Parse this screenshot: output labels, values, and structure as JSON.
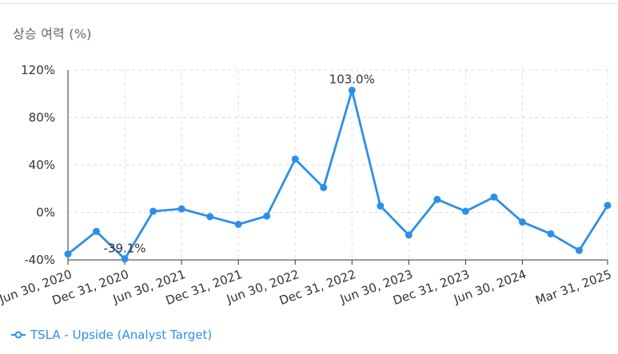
{
  "title": "상승 여력 (%)",
  "colors": {
    "series": "#2e8fe8",
    "grid": "#dddddd",
    "axis": "#333333",
    "text": "#333333"
  },
  "legend": {
    "position": "bottom-left",
    "label": "TSLA - Upside (Analyst Target)"
  },
  "chart_data": {
    "type": "line",
    "title": "상승 여력 (%)",
    "xlabel": "",
    "ylabel": "",
    "ylim": [
      -40,
      120
    ],
    "yticks": [
      "-40%",
      "0%",
      "40%",
      "80%",
      "120%"
    ],
    "ytick_values": [
      -40,
      0,
      40,
      80,
      120
    ],
    "grid": true,
    "x_tick_labels": [
      "Jun 30, 2020",
      "Dec 31, 2020",
      "Jun 30, 2021",
      "Dec 31, 2021",
      "Jun 30, 2022",
      "Dec 31, 2022",
      "Jun 30, 2023",
      "Dec 31, 2023",
      "Jun 30, 2024",
      "Mar 31, 2025"
    ],
    "x": [
      "Jun 30, 2020",
      "Sep 30, 2020",
      "Dec 31, 2020",
      "Mar 31, 2021",
      "Jun 30, 2021",
      "Sep 30, 2021",
      "Dec 31, 2021",
      "Mar 31, 2022",
      "Jun 30, 2022",
      "Sep 30, 2022",
      "Dec 31, 2022",
      "Mar 31, 2023",
      "Jun 30, 2023",
      "Sep 30, 2023",
      "Dec 31, 2023",
      "Mar 31, 2024",
      "Jun 30, 2024",
      "Sep 30, 2024",
      "Dec 31, 2024",
      "Mar 31, 2025"
    ],
    "series": [
      {
        "name": "TSLA - Upside (Analyst Target)",
        "values": [
          -35,
          -16,
          -39.1,
          1,
          3,
          -3.5,
          -10,
          -3,
          45,
          21,
          103.0,
          5.5,
          -19,
          11,
          1,
          13,
          -8,
          -18,
          -32,
          6
        ]
      }
    ],
    "annotations": [
      {
        "x": "Dec 31, 2020",
        "label": "-39.1%"
      },
      {
        "x": "Dec 31, 2022",
        "label": "103.0%"
      }
    ]
  }
}
